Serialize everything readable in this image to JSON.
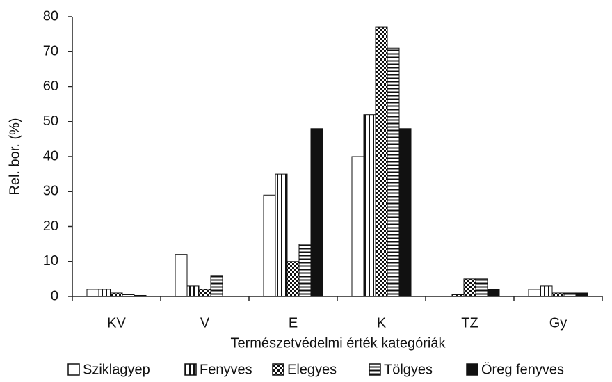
{
  "chart_data": {
    "type": "bar",
    "x_label": "Természetvédelmi érték kategóriák",
    "y_label": "Rel. bor. (%)",
    "categories": [
      "KV",
      "V",
      "E",
      "K",
      "TZ",
      "Gy"
    ],
    "series": [
      {
        "name": "Sziklagyep",
        "color": "#ffffff",
        "pattern": "none",
        "values": [
          2,
          12,
          29,
          40,
          0,
          2
        ]
      },
      {
        "name": "Fenyves",
        "color": "#ffffff",
        "pattern": "vertical",
        "values": [
          2,
          3,
          35,
          52,
          0.5,
          3
        ]
      },
      {
        "name": "Elegyes",
        "color": "#ffffff",
        "pattern": "checker",
        "values": [
          1,
          2,
          10,
          77,
          5,
          1
        ]
      },
      {
        "name": "Tölgyes",
        "color": "#ffffff",
        "pattern": "horizontal",
        "values": [
          0.5,
          6,
          15,
          71,
          5,
          1
        ]
      },
      {
        "name": "Öreg fenyves",
        "color": "#111111",
        "pattern": "solid",
        "values": [
          0.3,
          0,
          48,
          48,
          2,
          1
        ]
      }
    ],
    "ylim": [
      0,
      80
    ],
    "yticks": [
      0,
      10,
      20,
      30,
      40,
      50,
      60,
      70,
      80
    ],
    "legend": "bottom"
  }
}
